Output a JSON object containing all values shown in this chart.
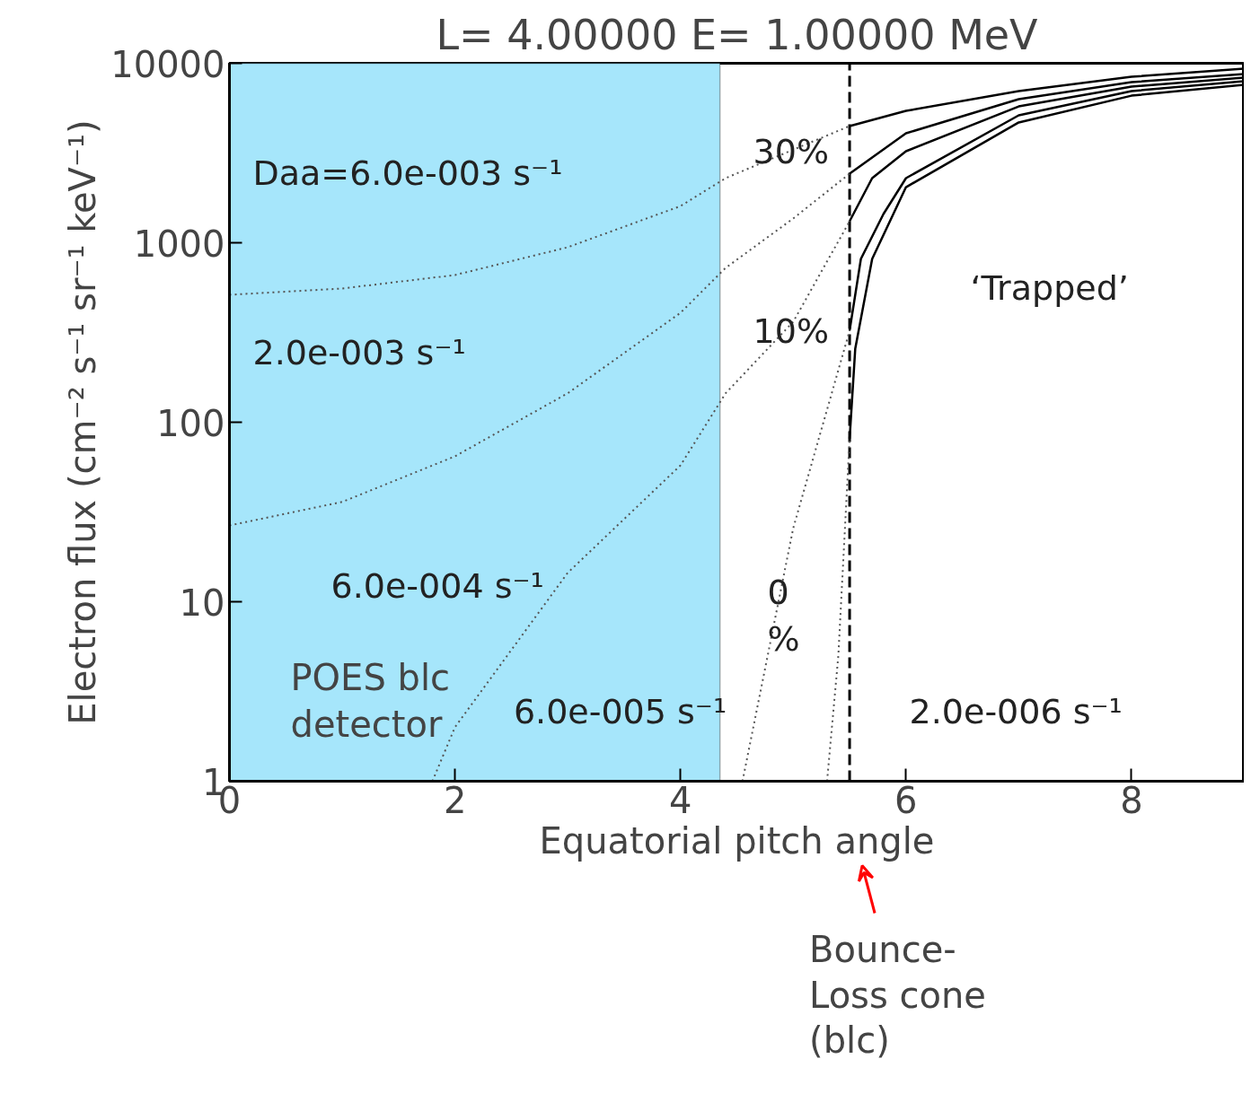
{
  "chart_data": {
    "type": "line",
    "title": "L= 4.00000 E= 1.00000 MeV",
    "xlabel": "Equatorial pitch angle",
    "ylabel": "Electron flux (cm⁻² s⁻¹ sr⁻¹ keV⁻¹)",
    "log": "y",
    "xlim": [
      0,
      9.0
    ],
    "ylim": [
      1,
      10000
    ],
    "xticks": [
      0,
      2,
      4,
      6,
      8
    ],
    "yticks": [
      1,
      10,
      100,
      1000,
      10000
    ],
    "grid": false,
    "series": [
      {
        "color": "#555555",
        "line_style": "dotted",
        "x": [
          0,
          1,
          2,
          3,
          4,
          4.4,
          5.0,
          5.5
        ],
        "values": [
          513,
          556,
          661,
          944,
          1600,
          2290,
          3300,
          4470
        ]
      },
      {
        "color": "#000000",
        "line_style": "solid",
        "x": [
          5.5,
          6,
          7,
          8,
          9
        ],
        "values": [
          4470,
          5430,
          7000,
          8410,
          9330
        ]
      },
      {
        "color": "#555555",
        "line_style": "dotted",
        "x": [
          0,
          1,
          2,
          3,
          4,
          4.4,
          5.0,
          5.5
        ],
        "values": [
          26.6,
          36,
          64.6,
          145,
          407,
          724,
          1365,
          2427
        ]
      },
      {
        "color": "#000000",
        "line_style": "solid",
        "x": [
          5.5,
          6,
          7,
          8,
          9
        ],
        "values": [
          2427,
          4074,
          6310,
          7850,
          8710
        ]
      },
      {
        "color": "#555555",
        "line_style": "dotted",
        "x": [
          1.8,
          2,
          3,
          4,
          4.4,
          5.0,
          5.5
        ],
        "values": [
          1,
          2.0,
          14.5,
          57.5,
          145,
          363,
          1318
        ]
      },
      {
        "color": "#000000",
        "line_style": "solid",
        "x": [
          5.5,
          5.7,
          6,
          7,
          8,
          9
        ],
        "values": [
          1318,
          2290,
          3236,
          5750,
          7410,
          8320
        ]
      },
      {
        "color": "#555555",
        "line_style": "dotted",
        "x": [
          4.55,
          5.0,
          5.5
        ],
        "values": [
          1,
          25.7,
          324
        ]
      },
      {
        "color": "#000000",
        "line_style": "solid",
        "x": [
          5.5,
          5.6,
          5.8,
          6,
          7,
          8,
          9
        ],
        "values": [
          324,
          813,
          1445,
          2290,
          5130,
          7000,
          7940
        ]
      },
      {
        "color": "#555555",
        "line_style": "dotted",
        "x": [
          5.3,
          5.4,
          5.5
        ],
        "values": [
          1,
          5,
          81
        ]
      },
      {
        "color": "#000000",
        "line_style": "solid",
        "x": [
          5.5,
          5.55,
          5.7,
          6,
          7,
          8,
          9
        ],
        "values": [
          81,
          257,
          813,
          2040,
          4680,
          6600,
          7590
        ]
      }
    ],
    "bands": [
      {
        "axis": "x",
        "from": 0,
        "to": 4.35,
        "label": "POES blc\ndetector",
        "color": "#a6e6fb"
      }
    ],
    "ref_lines": [
      {
        "axis": "x",
        "value": 5.5,
        "color": "#000000",
        "line_style": "dashed"
      }
    ],
    "annotations": [
      "Daa=6.0e-003 s⁻¹",
      "2.0e-003 s⁻¹",
      "6.0e-004 s⁻¹",
      "6.0e-005 s⁻¹",
      "2.0e-006 s⁻¹",
      "30%",
      "10%",
      "0\n%",
      "‘Trapped’",
      "Bounce-\nLoss cone\n(blc)"
    ]
  }
}
